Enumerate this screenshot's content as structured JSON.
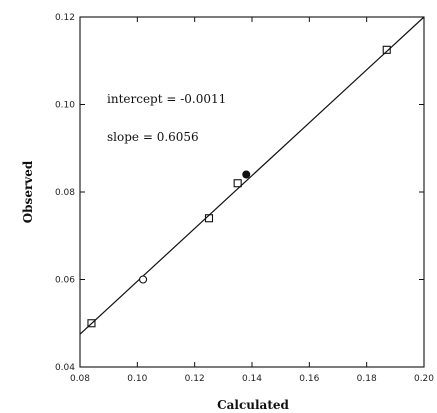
{
  "chart_data": {
    "type": "scatter",
    "xlabel": "Calculated",
    "ylabel": "Observed",
    "xlim": [
      0.08,
      0.2
    ],
    "ylim": [
      0.04,
      0.12
    ],
    "x_ticks": [
      0.08,
      0.1,
      0.12,
      0.14,
      0.16,
      0.18,
      0.2
    ],
    "x_tick_labels": [
      "0.08",
      "0.10",
      "0.12",
      "0.14",
      "0.16",
      "0.18",
      "0.20"
    ],
    "y_ticks": [
      0.04,
      0.06,
      0.08,
      0.1,
      0.12
    ],
    "y_tick_labels": [
      "0.04",
      "0.06",
      "0.08",
      "0.10",
      "0.12"
    ],
    "grid": false,
    "annotations": [
      {
        "text": "intercept = -0.0011"
      },
      {
        "text": "slope = 0.6056"
      }
    ],
    "points": [
      {
        "x": 0.084,
        "y": 0.05,
        "marker": "square"
      },
      {
        "x": 0.102,
        "y": 0.06,
        "marker": "open-circle"
      },
      {
        "x": 0.125,
        "y": 0.074,
        "marker": "square"
      },
      {
        "x": 0.135,
        "y": 0.082,
        "marker": "square"
      },
      {
        "x": 0.138,
        "y": 0.084,
        "marker": "filled-circle"
      },
      {
        "x": 0.187,
        "y": 0.1125,
        "marker": "square"
      }
    ],
    "fit_line": {
      "x": [
        0.08,
        0.2
      ],
      "y": [
        0.0475,
        0.12
      ]
    }
  }
}
